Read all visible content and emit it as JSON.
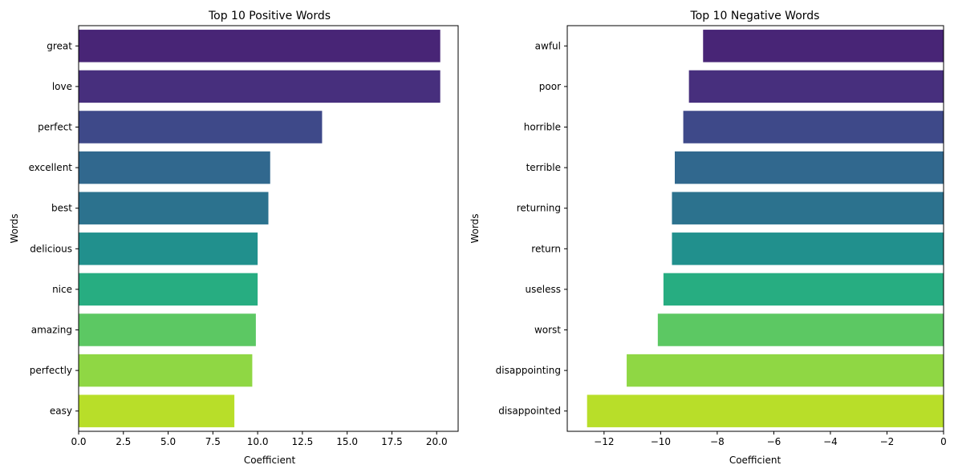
{
  "chart_data": [
    {
      "type": "bar",
      "orientation": "horizontal",
      "title": "Top 10 Positive Words",
      "xlabel": "Coefficient",
      "ylabel": "Words",
      "xlim": [
        0,
        21.2
      ],
      "xticks": [
        0,
        2.5,
        5,
        7.5,
        10,
        12.5,
        15,
        17.5,
        20
      ],
      "xtick_labels": [
        "0.0",
        "2.5",
        "5.0",
        "7.5",
        "10.0",
        "12.5",
        "15.0",
        "17.5",
        "20.0"
      ],
      "categories": [
        "great",
        "love",
        "perfect",
        "excellent",
        "best",
        "delicious",
        "nice",
        "amazing",
        "perfectly",
        "easy"
      ],
      "values": [
        20.2,
        20.2,
        13.6,
        10.7,
        10.6,
        10.0,
        10.0,
        9.9,
        9.7,
        8.7
      ],
      "colors": [
        "#482576",
        "#472f7d",
        "#3e4989",
        "#31688e",
        "#2c728e",
        "#21908d",
        "#27ad81",
        "#5cc863",
        "#8fd744",
        "#b8de29"
      ],
      "grid": false
    },
    {
      "type": "bar",
      "orientation": "horizontal",
      "title": "Top 10 Negative Words",
      "xlabel": "Coefficient",
      "ylabel": "Words",
      "xlim": [
        -13.3,
        0
      ],
      "xticks": [
        -12,
        -10,
        -8,
        -6,
        -4,
        -2,
        0
      ],
      "xtick_labels": [
        "−12",
        "−10",
        "−8",
        "−6",
        "−4",
        "−2",
        "0"
      ],
      "categories": [
        "awful",
        "poor",
        "horrible",
        "terrible",
        "returning",
        "return",
        "useless",
        "worst",
        "disappointing",
        "disappointed"
      ],
      "values": [
        -8.5,
        -9.0,
        -9.2,
        -9.5,
        -9.6,
        -9.6,
        -9.9,
        -10.1,
        -11.2,
        -12.6
      ],
      "colors": [
        "#482576",
        "#472f7d",
        "#3e4989",
        "#31688e",
        "#2c728e",
        "#21908d",
        "#27ad81",
        "#5cc863",
        "#8fd744",
        "#b8de29"
      ],
      "grid": false
    }
  ]
}
